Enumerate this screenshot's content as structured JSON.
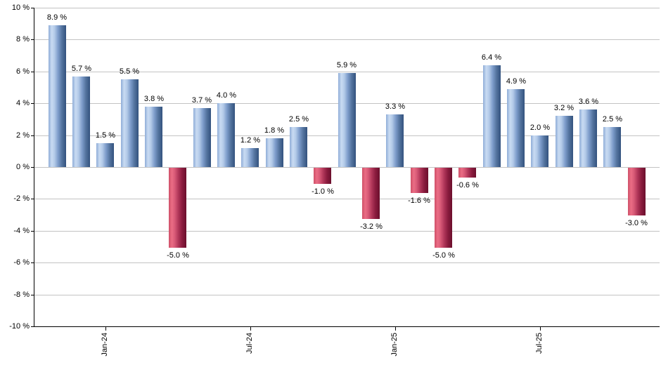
{
  "chart_data": {
    "type": "bar",
    "title": "",
    "xlabel": "",
    "ylabel": "",
    "ylim": [
      -10,
      10
    ],
    "grid": true,
    "legend": "none",
    "values": [
      8.9,
      5.7,
      1.5,
      5.5,
      3.8,
      -5.0,
      3.7,
      4.0,
      1.2,
      1.8,
      2.5,
      -1.0,
      5.9,
      -3.2,
      3.3,
      -1.6,
      -5.0,
      -0.6,
      6.4,
      4.9,
      2.0,
      3.2,
      3.6,
      2.5,
      -3.0
    ],
    "value_labels": [
      "8.9 %",
      "5.7 %",
      "1.5 %",
      "5.5 %",
      "3.8 %",
      "-5.0 %",
      "3.7 %",
      "4.0 %",
      "1.2 %",
      "1.8 %",
      "2.5 %",
      "-1.0 %",
      "5.9 %",
      "-3.2 %",
      "3.3 %",
      "-1.6 %",
      "-5.0 %",
      "-0.6 %",
      "6.4 %",
      "4.9 %",
      "2.0 %",
      "3.2 %",
      "3.6 %",
      "2.5 %",
      "-3.0 %"
    ],
    "x_ticks": [
      {
        "index": 2,
        "label": "Jan-24"
      },
      {
        "index": 8,
        "label": "Jul-24"
      },
      {
        "index": 14,
        "label": "Jan-25"
      },
      {
        "index": 20,
        "label": "Jul-25"
      }
    ],
    "y_ticks": [
      {
        "value": 10,
        "label": "10 %"
      },
      {
        "value": 8,
        "label": "8 %"
      },
      {
        "value": 6,
        "label": "6 %"
      },
      {
        "value": 4,
        "label": "4 %"
      },
      {
        "value": 2,
        "label": "2 %"
      },
      {
        "value": 0,
        "label": "0 %"
      },
      {
        "value": -2,
        "label": "-2 %"
      },
      {
        "value": -4,
        "label": "-4 %"
      },
      {
        "value": -6,
        "label": "-6 %"
      },
      {
        "value": -8,
        "label": "-8 %"
      },
      {
        "value": -10,
        "label": "-10 %"
      }
    ],
    "colors": {
      "positive_highlight": "#c9dbf2",
      "positive_dark": "#33527e",
      "negative_highlight": "#ea6d85",
      "negative_dark": "#6b0f2d",
      "gridline": "#c3c3c3",
      "axis": "#000000",
      "label_text": "#000000",
      "background": "#ffffff"
    }
  }
}
